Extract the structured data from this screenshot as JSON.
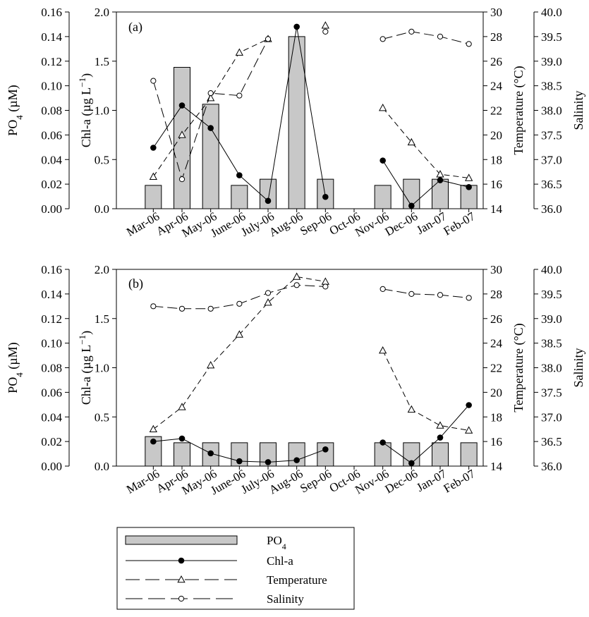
{
  "chart_data": [
    {
      "panel_label": "(a)",
      "type": "bar",
      "categories": [
        "Mar-06",
        "Apr-06",
        "May-06",
        "June-06",
        "July-06",
        "Aug-06",
        "Sep-06",
        "Oct-06",
        "Nov-06",
        "Dec-06",
        "Jan-07",
        "Feb-07"
      ],
      "axes": {
        "po4": {
          "label": "PO4 (µM)",
          "ylim": [
            0,
            0.16
          ],
          "ticks": [
            "0.00",
            "0.02",
            "0.04",
            "0.06",
            "0.08",
            "0.10",
            "0.12",
            "0.14",
            "0.16"
          ]
        },
        "chla": {
          "label": "Chl-a (µg L−1)",
          "ylim": [
            0,
            2.0
          ],
          "ticks": [
            "0.0",
            "0.5",
            "1.0",
            "1.5",
            "2.0"
          ]
        },
        "temperature": {
          "label": "Temperature (°C)",
          "ylim": [
            14,
            30
          ],
          "ticks": [
            "14",
            "16",
            "18",
            "20",
            "22",
            "24",
            "26",
            "28",
            "30"
          ]
        },
        "salinity": {
          "label": "Salinity",
          "ylim": [
            36.0,
            40.0
          ],
          "ticks": [
            "36.0",
            "36.5",
            "37.0",
            "37.5",
            "38.0",
            "38.5",
            "39.0",
            "39.5",
            "40.0"
          ]
        }
      },
      "series": [
        {
          "name": "PO4",
          "type": "bar",
          "values": [
            0.019,
            0.115,
            0.085,
            0.019,
            0.024,
            0.14,
            0.024,
            null,
            0.019,
            0.024,
            0.024,
            0.019
          ]
        },
        {
          "name": "Chl-a",
          "type": "line",
          "values": [
            0.62,
            1.05,
            0.82,
            0.34,
            0.08,
            1.85,
            0.12,
            null,
            0.49,
            0.03,
            0.29,
            0.22
          ]
        },
        {
          "name": "Temperature",
          "type": "line",
          "values": [
            16.6,
            20.0,
            23.0,
            26.7,
            27.8,
            null,
            28.9,
            null,
            22.2,
            19.4,
            16.8,
            16.5
          ]
        },
        {
          "name": "Salinity",
          "type": "line",
          "values": [
            38.6,
            36.6,
            38.35,
            38.3,
            39.45,
            null,
            39.6,
            null,
            39.45,
            39.6,
            39.5,
            39.35
          ]
        }
      ]
    },
    {
      "panel_label": "(b)",
      "type": "bar",
      "categories": [
        "Mar-06",
        "Apr-06",
        "May-06",
        "June-06",
        "July-06",
        "Aug-06",
        "Sep-06",
        "Oct-06",
        "Nov-06",
        "Dec-06",
        "Jan-07",
        "Feb-07"
      ],
      "axes": {
        "po4": {
          "label": "PO4 (µM)",
          "ylim": [
            0,
            0.16
          ],
          "ticks": [
            "0.00",
            "0.02",
            "0.04",
            "0.06",
            "0.08",
            "0.10",
            "0.12",
            "0.14",
            "0.16"
          ]
        },
        "chla": {
          "label": "Chl-a (µg L−1)",
          "ylim": [
            0,
            2.0
          ],
          "ticks": [
            "0.0",
            "0.5",
            "1.0",
            "1.5",
            "2.0"
          ]
        },
        "temperature": {
          "label": "Temperature (°C)",
          "ylim": [
            14,
            30
          ],
          "ticks": [
            "14",
            "16",
            "18",
            "20",
            "22",
            "24",
            "26",
            "28",
            "30"
          ]
        },
        "salinity": {
          "label": "Salinity",
          "ylim": [
            36.0,
            40.0
          ],
          "ticks": [
            "36.0",
            "36.5",
            "37.0",
            "37.5",
            "38.0",
            "38.5",
            "39.0",
            "39.5",
            "40.0"
          ]
        }
      },
      "series": [
        {
          "name": "PO4",
          "type": "bar",
          "values": [
            0.024,
            0.019,
            0.019,
            0.019,
            0.019,
            0.019,
            0.019,
            null,
            0.019,
            0.019,
            0.019,
            0.019
          ]
        },
        {
          "name": "Chl-a",
          "type": "line",
          "values": [
            0.25,
            0.28,
            0.13,
            0.05,
            0.04,
            0.06,
            0.17,
            null,
            0.24,
            0.03,
            0.29,
            0.62
          ]
        },
        {
          "name": "Temperature",
          "type": "line",
          "values": [
            17.0,
            18.8,
            22.2,
            24.7,
            27.3,
            29.4,
            29.0,
            null,
            23.4,
            18.6,
            17.3,
            16.9
          ]
        },
        {
          "name": "Salinity",
          "type": "line",
          "values": [
            39.25,
            39.2,
            39.2,
            39.3,
            39.52,
            39.68,
            39.65,
            null,
            39.6,
            39.5,
            39.48,
            39.42
          ]
        }
      ]
    }
  ],
  "legend": [
    {
      "name": "PO4",
      "style": "bar"
    },
    {
      "name": "Chl-a",
      "style": "solid-dot"
    },
    {
      "name": "Temperature",
      "style": "dash-triangle"
    },
    {
      "name": "Salinity",
      "style": "longdash-circle"
    }
  ]
}
